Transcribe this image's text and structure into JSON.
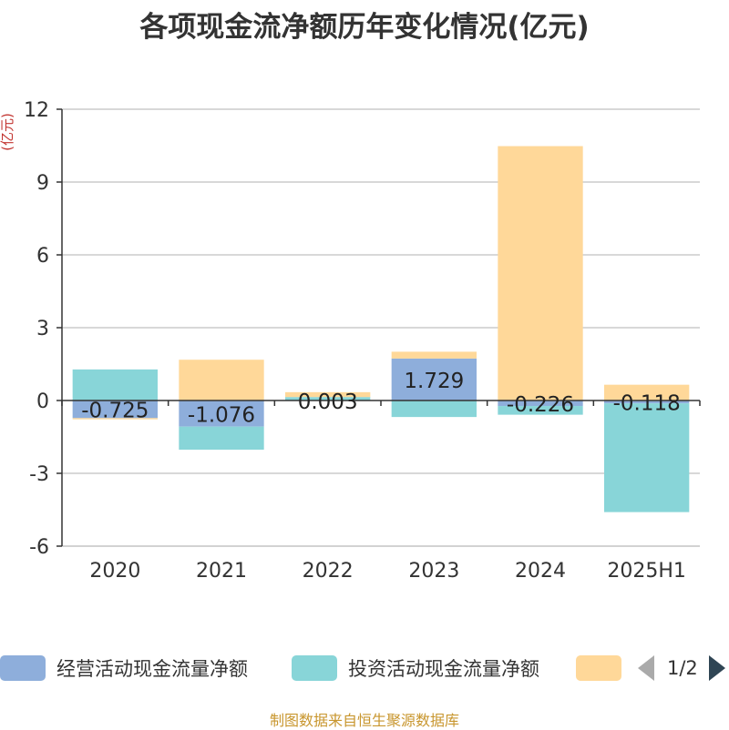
{
  "chart_data": {
    "type": "bar",
    "stacked": true,
    "title": "各项现金流净额历年变化情况(亿元)",
    "ylabel": "(亿元)",
    "ylim": [
      -6,
      12
    ],
    "yticks": [
      -6,
      -3,
      0,
      3,
      6,
      9,
      12
    ],
    "grid": true,
    "legend_position": "bottom",
    "categories": [
      "2020",
      "2021",
      "2022",
      "2023",
      "2024",
      "2025H1"
    ],
    "series": [
      {
        "name": "经营活动现金流量净额",
        "color": "#8eaedb",
        "values": [
          -0.725,
          -1.076,
          0.003,
          1.729,
          -0.226,
          -0.118
        ],
        "labels": [
          "-0.725",
          "-1.076",
          "0.003",
          "1.729",
          "-0.226",
          "-0.118"
        ]
      },
      {
        "name": "投资活动现金流量净额",
        "color": "#88d5d8",
        "values": [
          1.28,
          -0.95,
          0.14,
          -0.68,
          -0.36,
          -4.48
        ]
      },
      {
        "color": "#ffd899",
        "values": [
          -0.05,
          1.68,
          0.2,
          0.28,
          10.48,
          0.65
        ]
      }
    ]
  },
  "legend": {
    "page": "1/2"
  },
  "source": "制图数据来自恒生聚源数据库"
}
